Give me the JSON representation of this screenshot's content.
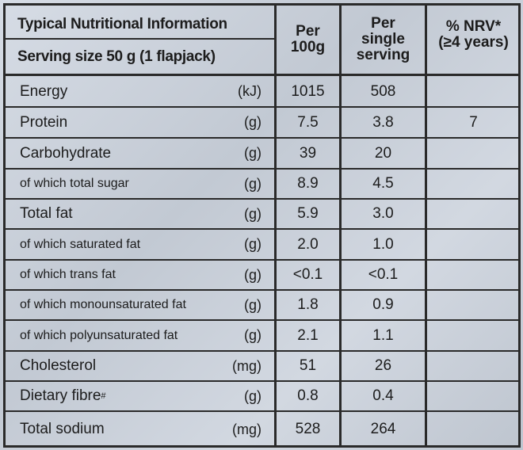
{
  "header": {
    "title": "Typical Nutritional Information",
    "serving": "Serving size 50 g (1 flapjack)",
    "col_per100_line1": "Per",
    "col_per100_line2": "100g",
    "col_serving_line1": "Per",
    "col_serving_line2": "single",
    "col_serving_line3": "serving",
    "col_nrv_line1": "% NRV*",
    "col_nrv_line2": "(≥4 years)"
  },
  "rows": [
    {
      "name": "Energy",
      "unit": "(kJ)",
      "per100": "1015",
      "serving": "508",
      "nrv": "",
      "style": "big"
    },
    {
      "name": "Protein",
      "unit": "(g)",
      "per100": "7.5",
      "serving": "3.8",
      "nrv": "7",
      "style": "big"
    },
    {
      "name": "Carbohydrate",
      "unit": "(g)",
      "per100": "39",
      "serving": "20",
      "nrv": "",
      "style": "big"
    },
    {
      "name": "of which total sugar",
      "unit": "(g)",
      "per100": "8.9",
      "serving": "4.5",
      "nrv": "",
      "style": "small"
    },
    {
      "name": "Total fat",
      "unit": "(g)",
      "per100": "5.9",
      "serving": "3.0",
      "nrv": "",
      "style": "big"
    },
    {
      "name": "of which saturated fat",
      "unit": "(g)",
      "per100": "2.0",
      "serving": "1.0",
      "nrv": "",
      "style": "small"
    },
    {
      "name": "of which trans fat",
      "unit": "(g)",
      "per100": "<0.1",
      "serving": "<0.1",
      "nrv": "",
      "style": "small"
    },
    {
      "name": "of which monounsaturated fat",
      "unit": "(g)",
      "per100": "1.8",
      "serving": "0.9",
      "nrv": "",
      "style": "small"
    },
    {
      "name": "of which polyunsaturated fat",
      "unit": "(g)",
      "per100": "2.1",
      "serving": "1.1",
      "nrv": "",
      "style": "small"
    },
    {
      "name": "Cholesterol",
      "unit": "(mg)",
      "per100": "51",
      "serving": "26",
      "nrv": "",
      "style": "big"
    },
    {
      "name": "Dietary fibre",
      "name_sup": "#",
      "unit": "(g)",
      "per100": "0.8",
      "serving": "0.4",
      "nrv": "",
      "style": "big"
    },
    {
      "name": "Total sodium",
      "unit": "(mg)",
      "per100": "528",
      "serving": "264",
      "nrv": "",
      "style": "big"
    }
  ]
}
